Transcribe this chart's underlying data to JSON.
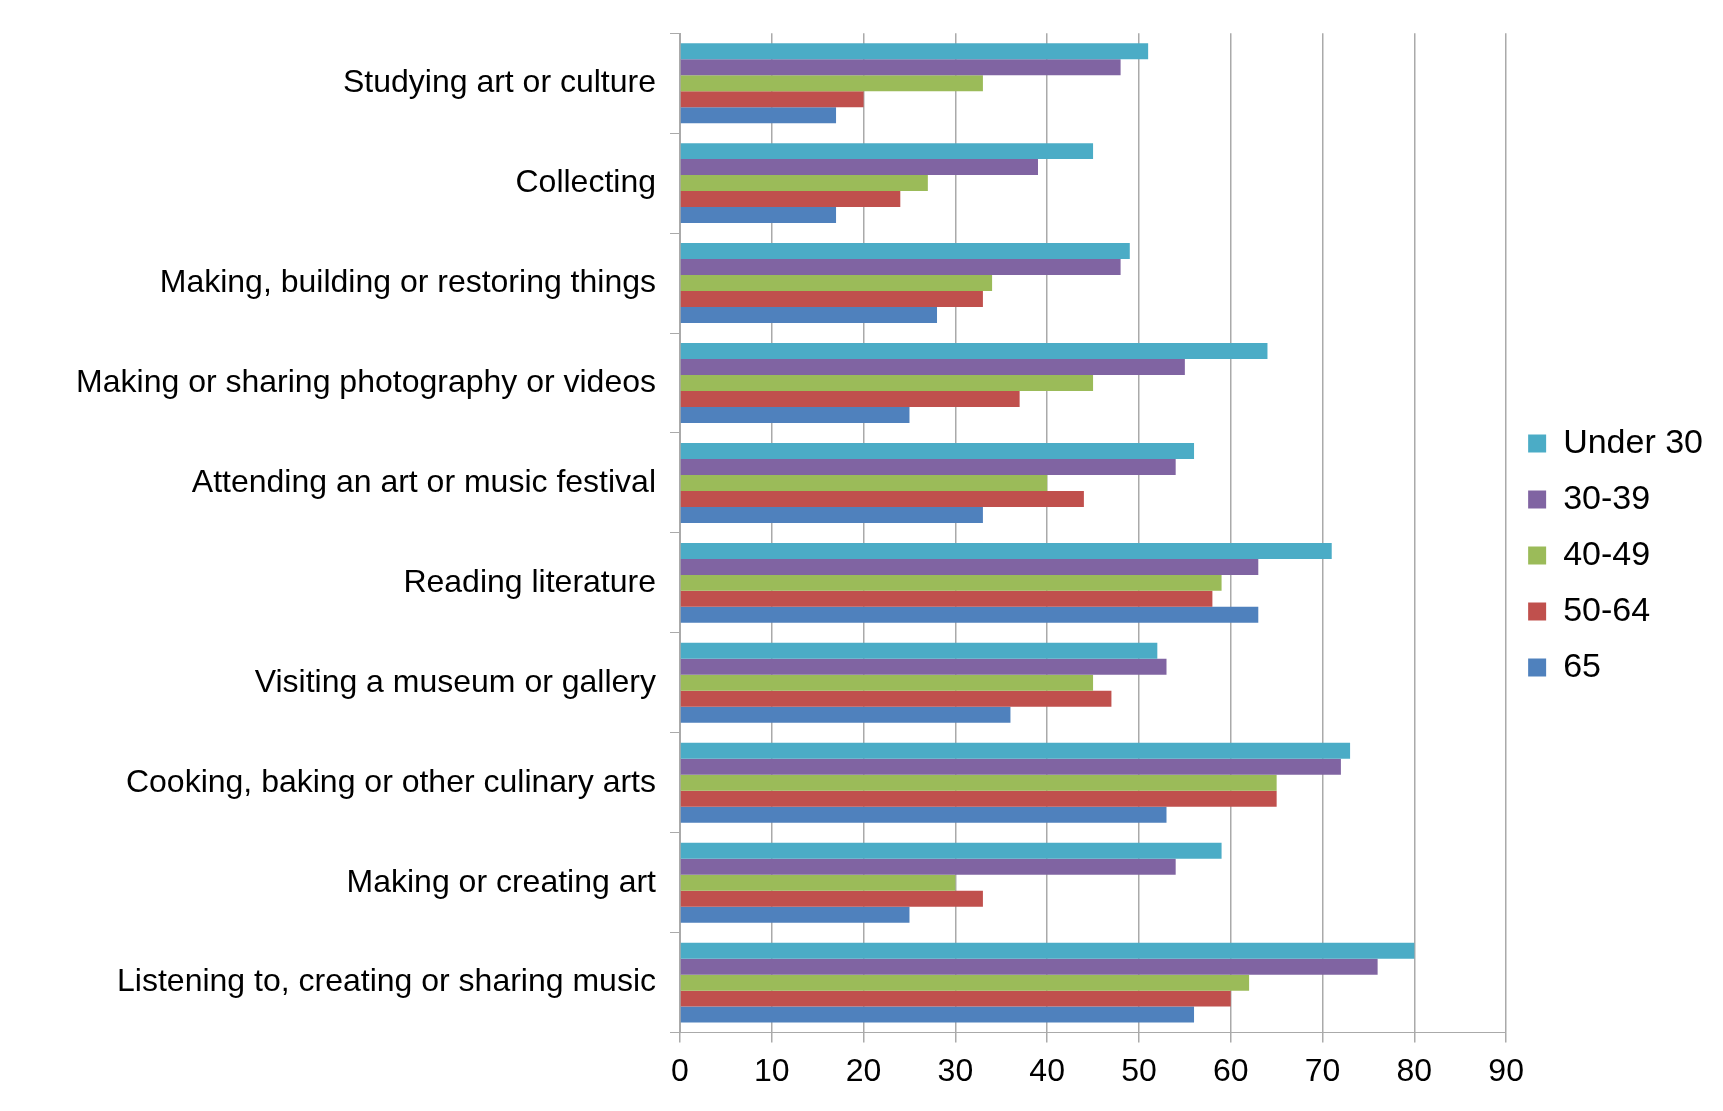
{
  "chart_data": {
    "type": "bar",
    "orientation": "horizontal",
    "categories": [
      "Studying art or culture",
      "Collecting",
      "Making, building or restoring things",
      "Making or sharing photography or videos",
      "Attending an art or music festival",
      "Reading literature",
      "Visiting a museum or gallery",
      "Cooking, baking or other culinary arts",
      "Making or creating art",
      "Listening to, creating or sharing music"
    ],
    "series": [
      {
        "name": "Under 30",
        "color": "#4bacc6",
        "values": [
          51,
          45,
          49,
          64,
          56,
          71,
          52,
          73,
          59,
          80
        ]
      },
      {
        "name": "30-39",
        "color": "#8064a2",
        "values": [
          48,
          39,
          48,
          55,
          54,
          63,
          53,
          72,
          54,
          76
        ]
      },
      {
        "name": "40-49",
        "color": "#9bbb59",
        "values": [
          33,
          27,
          34,
          45,
          40,
          59,
          45,
          65,
          30,
          62
        ]
      },
      {
        "name": "50-64",
        "color": "#c0504d",
        "values": [
          20,
          24,
          33,
          37,
          44,
          58,
          47,
          65,
          33,
          60
        ]
      },
      {
        "name": "65",
        "color": "#4f81bd",
        "values": [
          17,
          17,
          28,
          25,
          33,
          63,
          36,
          53,
          25,
          56
        ]
      }
    ],
    "xlim": [
      0,
      90
    ],
    "xticks": [
      0,
      10,
      20,
      30,
      40,
      50,
      60,
      70,
      80,
      90
    ],
    "grid": "x",
    "legend": "right"
  }
}
